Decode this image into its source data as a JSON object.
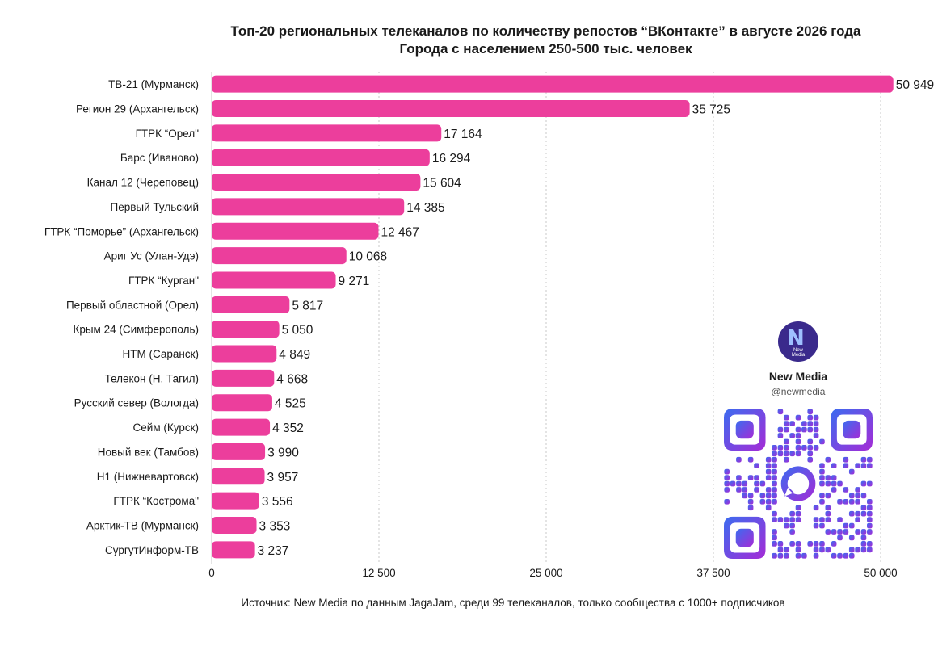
{
  "chart_data": {
    "type": "bar",
    "orientation": "horizontal",
    "title": "Топ-20 региональных телеканалов по количеству репостов “ВКонтакте” в августе 2026 года",
    "subtitle": "Города с населением 250-500 тыс. человек",
    "categories": [
      "ТВ-21 (Мурманск)",
      "Регион 29 (Архангельск)",
      "ГТРК “Орел\"",
      "Барс (Иваново)",
      "Канал 12 (Череповец)",
      "Первый Тульский",
      "ГТРК “Поморье” (Архангельск)",
      "Ариг Ус (Улан-Удэ)",
      "ГТРК “Курган\"",
      "Первый областной (Орел)",
      "Крым 24 (Симферополь)",
      "НТМ (Саранск)",
      "Телекон (Н. Тагил)",
      "Русский север (Вологда)",
      "Сейм (Курск)",
      "Новый век (Тамбов)",
      "Н1 (Нижневартовск)",
      "ГТРК “Кострома\"",
      "Арктик-ТВ (Мурманск)",
      "СургутИнформ-ТВ"
    ],
    "values": [
      50949,
      35725,
      17164,
      16294,
      15604,
      14385,
      12467,
      10068,
      9271,
      5817,
      5050,
      4849,
      4668,
      4525,
      4352,
      3990,
      3957,
      3556,
      3353,
      3237
    ],
    "value_labels": [
      "50 949",
      "35 725",
      "17 164",
      "16 294",
      "15 604",
      "14 385",
      "12 467",
      "10 068",
      "9 271",
      "5 817",
      "5 050",
      "4 849",
      "4 668",
      "4 525",
      "4 352",
      "3 990",
      "3 957",
      "3 556",
      "3 353",
      "3 237"
    ],
    "xlim": [
      0,
      50000
    ],
    "xticks": [
      0,
      12500,
      25000,
      37500,
      50000
    ],
    "xtick_labels": [
      "0",
      "12 500",
      "25 000",
      "37 500",
      "50 000"
    ],
    "grid": "vertical dotted",
    "colors": {
      "bar": "#ec3e9c",
      "grid": "#c9c9c9",
      "text": "#1a1a1a"
    }
  },
  "source": "Источник: New Media по данным JagaJam, среди 99 телеканалов, только сообщества с 1000+ подписчиков",
  "brand": {
    "name": "New Media",
    "handle": "@newmedia",
    "logo_letter": "N",
    "logo_caption": "New Media",
    "logo_icon": "new-media-logo-icon",
    "qr_icon": "qr-code-icon",
    "qr_gradient": [
      "#3b6cf0",
      "#a52bd6"
    ]
  }
}
